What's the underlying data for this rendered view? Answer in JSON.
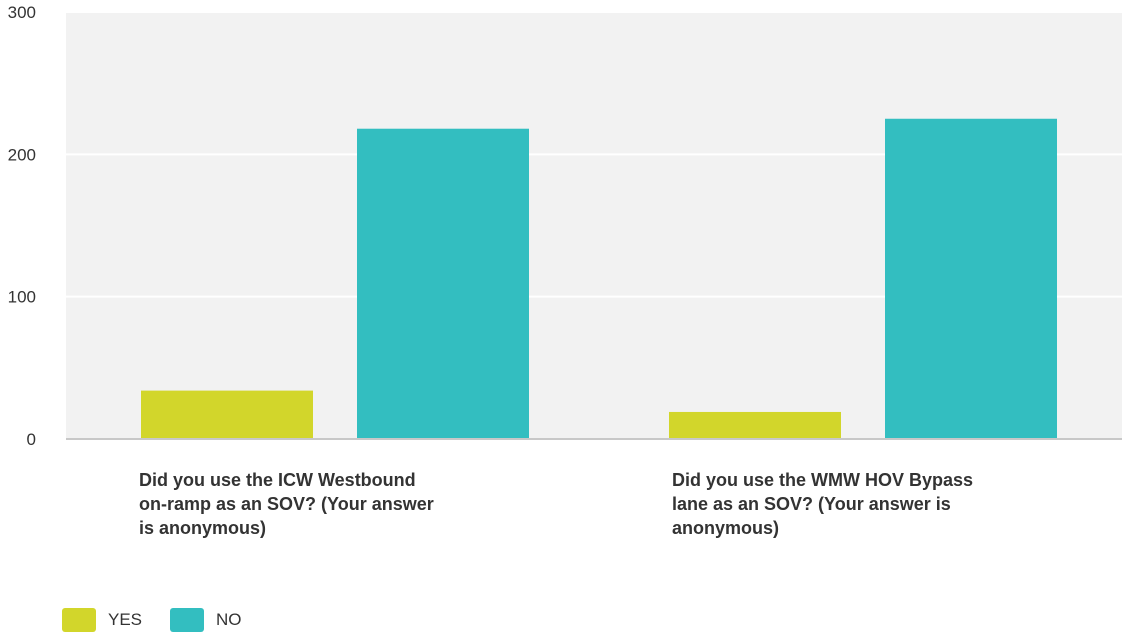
{
  "chart_data": {
    "type": "bar",
    "title": "",
    "xlabel": "",
    "ylabel": "",
    "categories": [
      "Did you use the ICW Westbound on-ramp as an SOV? (Your answer is anonymous)",
      "Did you use the WMW HOV Bypass lane as an SOV? (Your answer is anonymous)"
    ],
    "category_lines": [
      [
        "Did you use the ICW Westbound",
        "on-ramp as an SOV? (Your answer",
        "is anonymous)"
      ],
      [
        "Did you use the WMW HOV Bypass",
        "lane as an SOV? (Your answer is",
        "anonymous)"
      ]
    ],
    "series": [
      {
        "name": "YES",
        "color": "#d2d62b",
        "values": [
          34,
          19
        ]
      },
      {
        "name": "NO",
        "color": "#33bec0",
        "values": [
          218,
          225
        ]
      }
    ],
    "ylim": [
      0,
      300
    ],
    "yticks": [
      "0",
      "100",
      "200",
      "300"
    ],
    "grid": true,
    "legend_position": "bottom-left"
  }
}
